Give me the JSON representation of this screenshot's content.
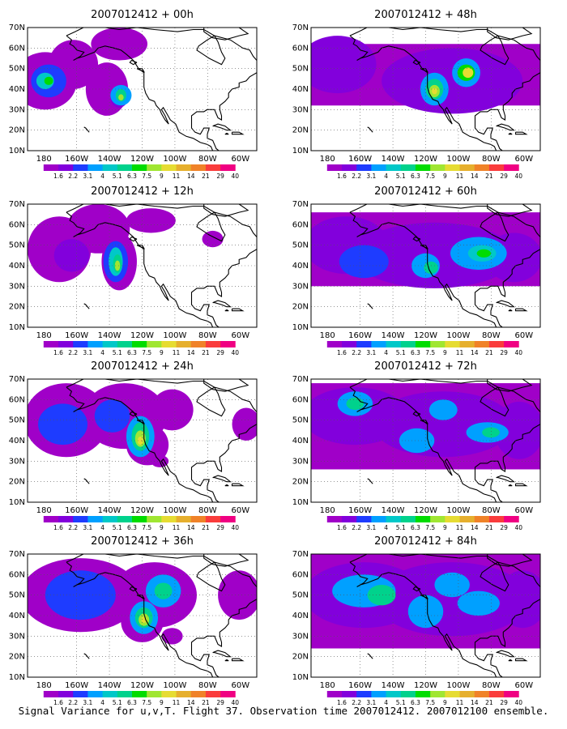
{
  "caption": "Signal Variance for u,v,T. Flight 37. Observation time 2007012412. 2007012100 ensemble.",
  "colorbar": {
    "labels": [
      "1.6",
      "2.2",
      "3.1",
      "4",
      "5.1",
      "6.3",
      "7.5",
      "9",
      "11",
      "14",
      "21",
      "29",
      "40"
    ],
    "colors": [
      "#a000c8",
      "#8200dc",
      "#1e3cff",
      "#00a0ff",
      "#00c8c8",
      "#00d28c",
      "#00dc00",
      "#a0e632",
      "#e6dc32",
      "#e6af2d",
      "#f08228",
      "#fa3c3c",
      "#f00082"
    ]
  },
  "axes": {
    "x_labels": [
      "180",
      "160W",
      "140W",
      "120W",
      "100W",
      "80W",
      "60W"
    ],
    "y_labels": [
      "10N",
      "20N",
      "30N",
      "40N",
      "50N",
      "60N",
      "70N"
    ],
    "lon_range": [
      -190,
      -60
    ],
    "lat_range": [
      10,
      70
    ]
  },
  "chart_data": [
    {
      "type": "heatmap",
      "title": "2007012412 + 00h",
      "lead": "00h"
    },
    {
      "type": "heatmap",
      "title": "2007012412 + 48h",
      "lead": "48h"
    },
    {
      "type": "heatmap",
      "title": "2007012412 + 12h",
      "lead": "12h"
    },
    {
      "type": "heatmap",
      "title": "2007012412 + 60h",
      "lead": "60h"
    },
    {
      "type": "heatmap",
      "title": "2007012412 + 24h",
      "lead": "24h"
    },
    {
      "type": "heatmap",
      "title": "2007012412 + 72h",
      "lead": "72h"
    },
    {
      "type": "heatmap",
      "title": "2007012412 + 36h",
      "lead": "36h"
    },
    {
      "type": "heatmap",
      "title": "2007012412 + 84h",
      "lead": "84h"
    }
  ]
}
